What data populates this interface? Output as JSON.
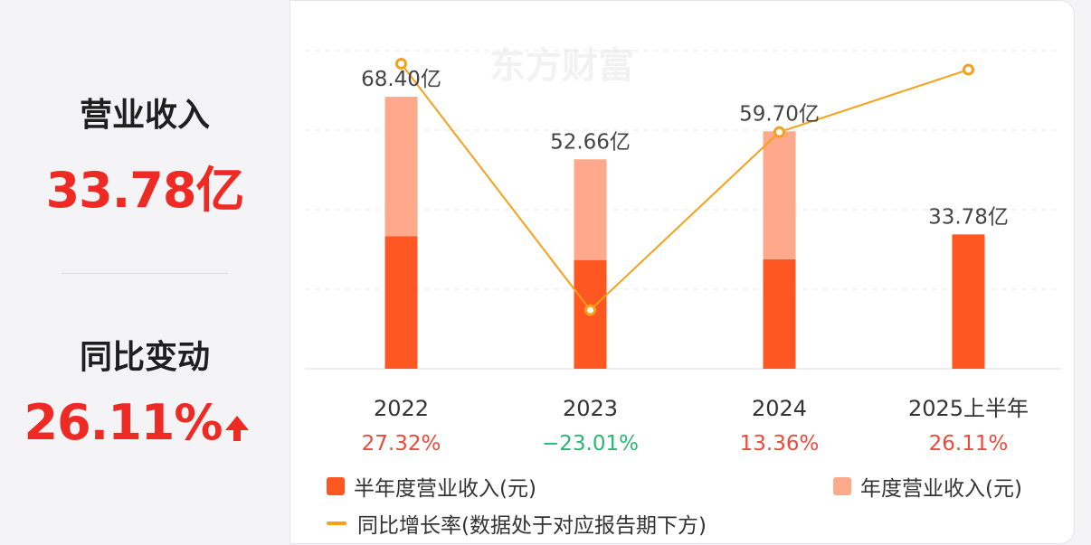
{
  "summary": {
    "revenue_label": "营业收入",
    "revenue_value": "33.78亿",
    "change_label": "同比变动",
    "change_value": "26.11%",
    "change_direction_icon": "arrow-up-icon"
  },
  "watermark": "东方财富",
  "chart_data": {
    "type": "bar",
    "categories": [
      "2022",
      "2023",
      "2024",
      "2025上半年"
    ],
    "series": [
      {
        "name": "半年度营业收入(元)",
        "values": [
          33.3,
          27.3,
          27.5,
          33.78
        ],
        "color": "#ff5722"
      },
      {
        "name": "年度营业收入(元)",
        "values": [
          68.4,
          52.66,
          59.7,
          null
        ],
        "color": "#ffa98c"
      },
      {
        "name": "同比增长率(数据处于对应报告期下方)",
        "type": "line",
        "values": [
          27.32,
          -23.01,
          13.36,
          26.11
        ],
        "color": "#f7a11a"
      }
    ],
    "bar_labels": [
      "68.40亿",
      "52.66亿",
      "59.70亿",
      "33.78亿"
    ],
    "growth_labels": [
      "27.32%",
      "−23.01%",
      "13.36%",
      "26.11%"
    ],
    "growth_colors": [
      "#e84c3d",
      "#2bb673",
      "#e84c3d",
      "#e84c3d"
    ],
    "ylim": [
      0,
      80
    ],
    "line_ylim": [
      -35,
      30
    ],
    "grid": true,
    "legend_position": "bottom"
  },
  "legend": {
    "half_year": "半年度营业收入(元)",
    "annual": "年度营业收入(元)",
    "growth": "同比增长率(数据处于对应报告期下方)"
  },
  "colors": {
    "accent_red": "#ee2a24",
    "half_bar": "#ff5722",
    "annual_bar": "#ffa98c",
    "line": "#f7a11a"
  }
}
